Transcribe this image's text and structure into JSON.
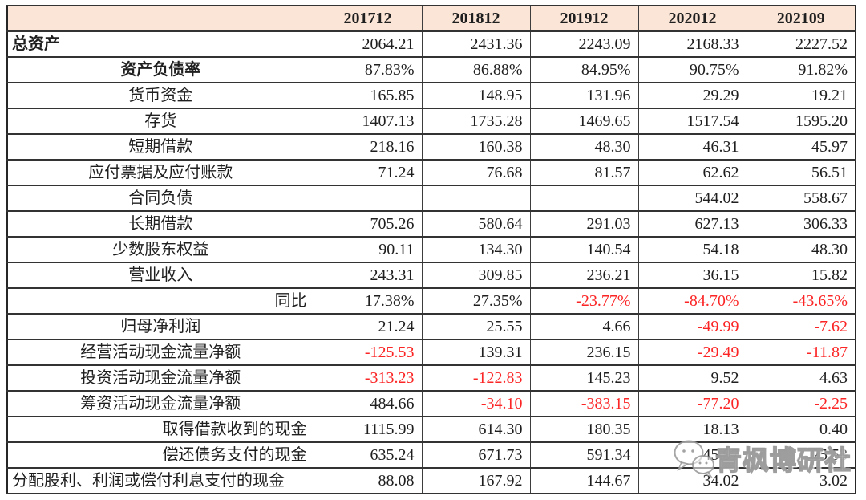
{
  "page": {
    "background": "#ffffff"
  },
  "colors": {
    "header_bg": "#fbe5d6",
    "negative_value": "#fb2525",
    "text": "#1f1f1f",
    "grid_line": "#3a3a3a"
  },
  "watermark": {
    "text": "青枫博研社",
    "icon": "chat-bubbles-icon"
  },
  "chart_data": {
    "type": "table",
    "columns": [
      "",
      "201712",
      "201812",
      "201912",
      "202012",
      "202109"
    ],
    "rows": [
      {
        "label": "总资产",
        "bold": true,
        "align": "left",
        "values": [
          "2064.21",
          "2431.36",
          "2243.09",
          "2168.33",
          "2227.52"
        ]
      },
      {
        "label": "资产负债率",
        "bold": true,
        "align": "center",
        "values": [
          "87.83%",
          "86.88%",
          "84.95%",
          "90.75%",
          "91.82%"
        ]
      },
      {
        "label": "货币资金",
        "bold": false,
        "align": "center",
        "values": [
          "165.85",
          "148.95",
          "131.96",
          "29.29",
          "19.21"
        ]
      },
      {
        "label": "存货",
        "bold": false,
        "align": "center",
        "values": [
          "1407.13",
          "1735.28",
          "1469.65",
          "1517.54",
          "1595.20"
        ]
      },
      {
        "label": "短期借款",
        "bold": false,
        "align": "center",
        "values": [
          "218.16",
          "160.38",
          "48.30",
          "46.31",
          "45.97"
        ]
      },
      {
        "label": "应付票据及应付账款",
        "bold": false,
        "align": "center",
        "values": [
          "71.24",
          "76.68",
          "81.57",
          "62.62",
          "56.51"
        ]
      },
      {
        "label": "合同负债",
        "bold": false,
        "align": "center",
        "values": [
          "",
          "",
          "",
          "544.02",
          "558.67"
        ]
      },
      {
        "label": "长期借款",
        "bold": false,
        "align": "center",
        "values": [
          "705.26",
          "580.64",
          "291.03",
          "627.13",
          "306.33"
        ]
      },
      {
        "label": "少数股东权益",
        "bold": false,
        "align": "center",
        "values": [
          "90.11",
          "134.30",
          "140.54",
          "54.18",
          "48.30"
        ]
      },
      {
        "label": "营业收入",
        "bold": false,
        "align": "center",
        "values": [
          "243.31",
          "309.85",
          "236.21",
          "36.15",
          "15.82"
        ]
      },
      {
        "label": "同比",
        "bold": false,
        "align": "right",
        "values": [
          "17.38%",
          "27.35%",
          "-23.77%",
          "-84.70%",
          "-43.65%"
        ]
      },
      {
        "label": "归母净利润",
        "bold": false,
        "align": "center",
        "values": [
          "21.24",
          "25.55",
          "4.66",
          "-49.99",
          "-7.62"
        ]
      },
      {
        "label": "经营活动现金流量净额",
        "bold": false,
        "align": "center",
        "values": [
          "-125.53",
          "139.31",
          "236.15",
          "-29.49",
          "-11.87"
        ]
      },
      {
        "label": "投资活动现金流量净额",
        "bold": false,
        "align": "center",
        "values": [
          "-313.23",
          "-122.83",
          "145.23",
          "9.52",
          "4.63"
        ]
      },
      {
        "label": "筹资活动现金流量净额",
        "bold": false,
        "align": "center",
        "values": [
          "484.66",
          "-34.10",
          "-383.15",
          "-77.20",
          "-2.25"
        ]
      },
      {
        "label": "取得借款收到的现金",
        "bold": false,
        "align": "right",
        "values": [
          "1115.99",
          "614.30",
          "180.35",
          "18.13",
          "0.40"
        ]
      },
      {
        "label": "偿还债务支付的现金",
        "bold": false,
        "align": "right",
        "values": [
          "635.24",
          "671.73",
          "591.34",
          "45.97",
          "25.53"
        ]
      },
      {
        "label": "分配股利、利润或偿付利息支付的现金",
        "bold": false,
        "align": "left",
        "values": [
          "88.08",
          "167.92",
          "144.67",
          "34.02",
          "3.02"
        ]
      }
    ]
  }
}
